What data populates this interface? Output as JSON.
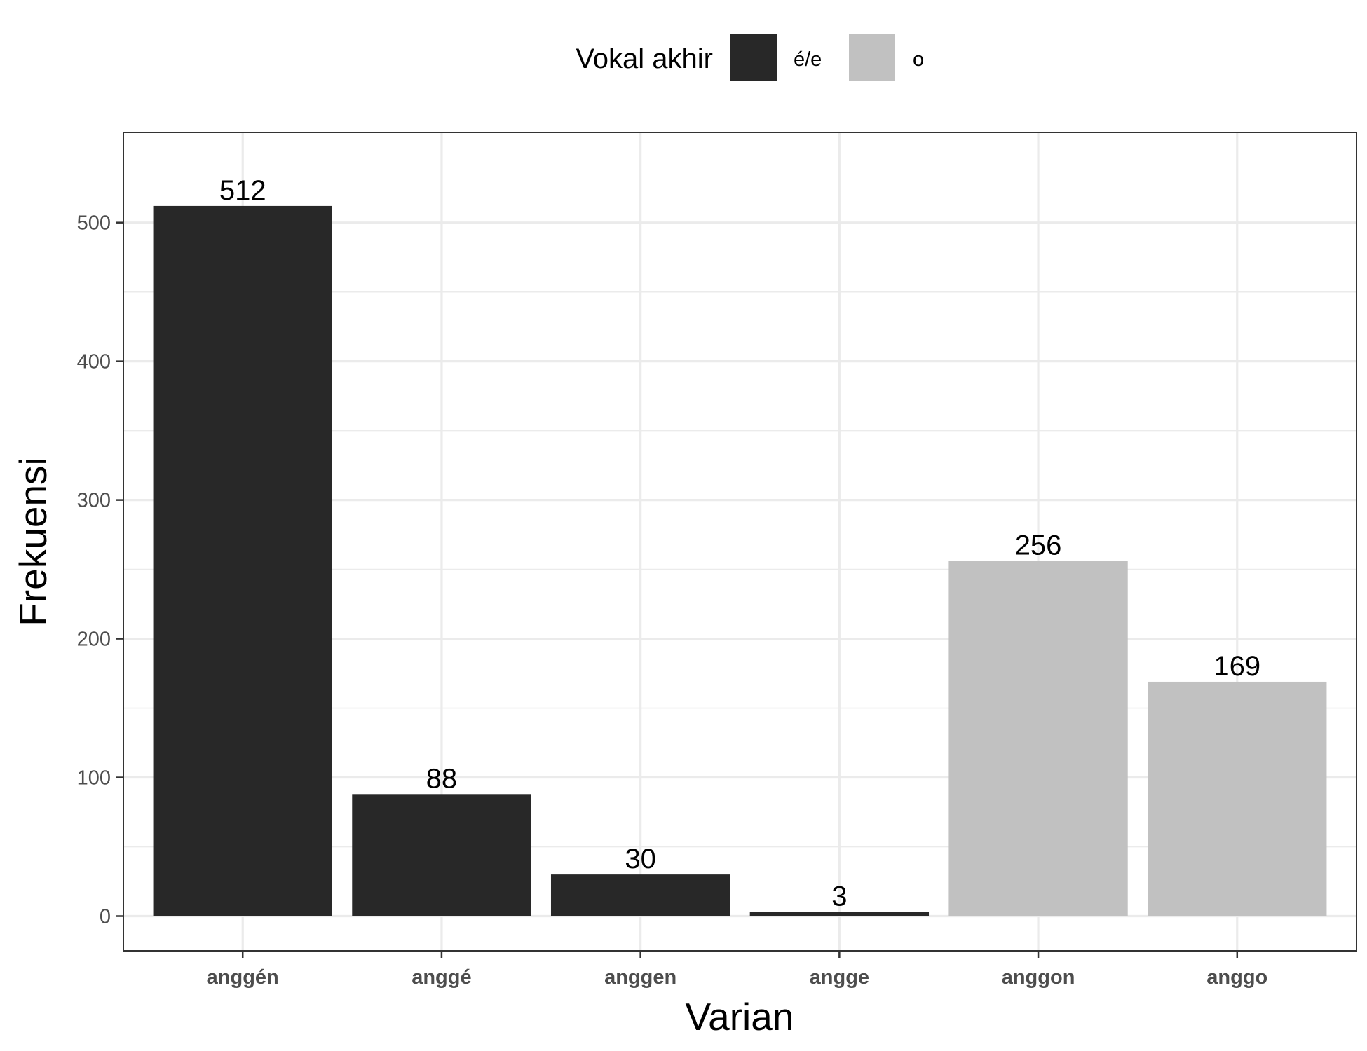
{
  "chart_data": {
    "type": "bar",
    "categories": [
      "anggén",
      "anggé",
      "anggen",
      "angge",
      "anggon",
      "anggo"
    ],
    "values": [
      512,
      88,
      30,
      3,
      256,
      169
    ],
    "groups": [
      "é/e",
      "é/e",
      "é/e",
      "é/e",
      "o",
      "o"
    ],
    "data_labels": [
      "512",
      "88",
      "30",
      "3",
      "256",
      "169"
    ],
    "xlabel": "Varian",
    "ylabel": "Frekuensi",
    "ylim": [
      -25,
      565
    ],
    "yticks": [
      0,
      100,
      200,
      300,
      400,
      500
    ],
    "ytick_labels": [
      "0",
      "100",
      "200",
      "300",
      "400",
      "500"
    ],
    "grid": true,
    "legend": {
      "title": "Vokal akhir",
      "placement": "top",
      "entries": [
        {
          "label": "é/e",
          "color": "#282828"
        },
        {
          "label": "o",
          "color": "#c1c1c1"
        }
      ]
    }
  }
}
